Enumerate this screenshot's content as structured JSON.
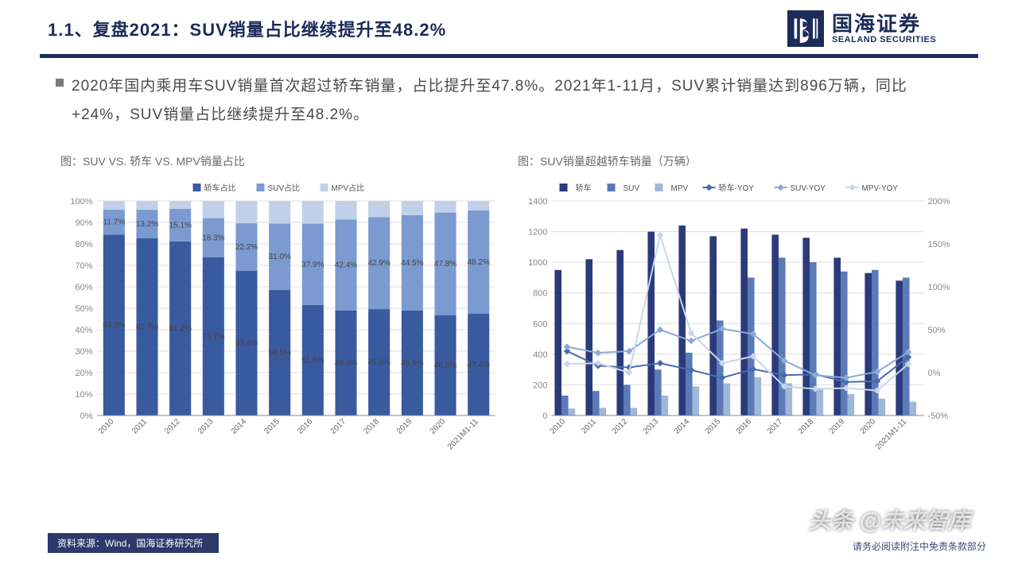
{
  "header": {
    "title": "1.1、复盘2021：SUV销量占比继续提升至48.2%",
    "logo_cn": "国海证券",
    "logo_en": "SEALAND SECURITIES"
  },
  "body": {
    "paragraph": "2020年国内乘用车SUV销量首次超过轿车销量，占比提升至47.8%。2021年1-11月，SUV累计销量达到896万辆，同比+24%，SUV销量占比继续提升至48.2%。"
  },
  "chartLeft": {
    "title": "图：SUV VS. 轿车 VS. MPV销量占比",
    "legend": [
      "轿车占比",
      "SUV占比",
      "MPV占比"
    ],
    "colors": {
      "sedan": "#3a5aa0",
      "suv": "#7a9ad0",
      "mpv": "#c0d0e8"
    },
    "categories": [
      "2010",
      "2011",
      "2012",
      "2013",
      "2014",
      "2015",
      "2016",
      "2017",
      "2018",
      "2019",
      "2020",
      "2021M1-11"
    ],
    "sedan": [
      84.3,
      82.7,
      81.2,
      73.7,
      67.4,
      58.5,
      51.5,
      49.0,
      49.6,
      48.9,
      46.8,
      47.4
    ],
    "suv": [
      11.7,
      13.2,
      15.1,
      18.3,
      22.2,
      31.0,
      37.9,
      42.4,
      42.9,
      44.5,
      47.8,
      48.2
    ],
    "yaxis": {
      "min": 0,
      "max": 100,
      "step": 10,
      "suffix": "%"
    }
  },
  "chartRight": {
    "title": "图：SUV销量超越轿车销量（万辆）",
    "legendBars": [
      "轿车",
      "SUV",
      "MPV"
    ],
    "legendLines": [
      "轿车-YOY",
      "SUV-YOY",
      "MPV-YOY"
    ],
    "barColors": {
      "sedan": "#2a3a7a",
      "suv": "#5a7ab8",
      "mpv": "#a0b8d8"
    },
    "lineColors": {
      "sedanYoy": "#4a6ab0",
      "suvYoy": "#8aa8d8",
      "mpvYoy": "#c8d6ea"
    },
    "categories": [
      "2010",
      "2011",
      "2012",
      "2013",
      "2014",
      "2015",
      "2016",
      "2017",
      "2018",
      "2019",
      "2020",
      "2021M1-11"
    ],
    "sedan": [
      950,
      1020,
      1080,
      1200,
      1240,
      1170,
      1220,
      1180,
      1160,
      1030,
      930,
      880
    ],
    "suv": [
      130,
      160,
      200,
      300,
      410,
      620,
      900,
      1030,
      1000,
      940,
      950,
      900
    ],
    "mpv": [
      45,
      50,
      50,
      130,
      190,
      210,
      250,
      210,
      170,
      140,
      110,
      90
    ],
    "sedanYoy": [
      25,
      8,
      6,
      11,
      3,
      -6,
      4,
      -3,
      -2,
      -11,
      -10,
      18
    ],
    "suvYoy": [
      30,
      23,
      25,
      50,
      37,
      51,
      45,
      14,
      -3,
      -6,
      1,
      24
    ],
    "mpvYoy": [
      10,
      11,
      0,
      160,
      46,
      11,
      19,
      -16,
      -19,
      -18,
      -21,
      10
    ],
    "yLeft": {
      "min": 0,
      "max": 1400,
      "step": 200
    },
    "yRight": {
      "min": -50,
      "max": 200,
      "step": 50,
      "suffix": "%"
    }
  },
  "footer": {
    "source": "资料来源：Wind，国海证券研究所",
    "disclaimer": "请务必阅读附注中免责条款部分",
    "watermark": "头条 @未来智库"
  }
}
